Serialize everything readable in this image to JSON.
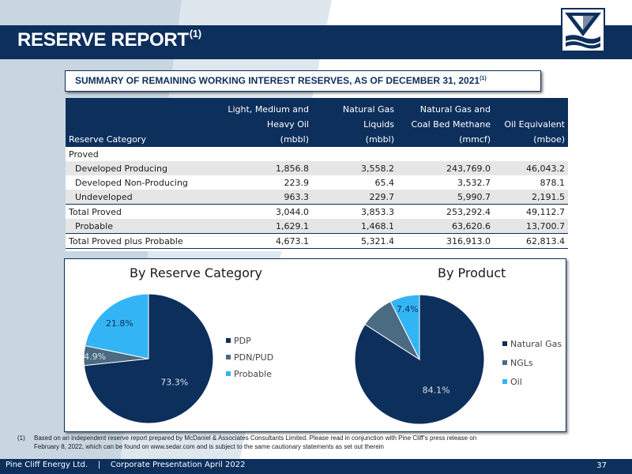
{
  "slide": {
    "title": "RESERVE REPORT",
    "title_sup": "(1)",
    "subtitle": "SUMMARY OF REMAINING WORKING INTEREST RESERVES, AS OF DECEMBER 31, 2021",
    "subtitle_sup": "(1)"
  },
  "table": {
    "headers": {
      "category": "Reserve Category",
      "col1_l1": "Light, Medium and",
      "col1_l2": "Heavy Oil",
      "col1_l3": "(mbbl)",
      "col2_l1": "Natural Gas",
      "col2_l2": "Liquids",
      "col2_l3": "(mbbl)",
      "col3_l1": "Natural Gas and",
      "col3_l2": "Coal Bed Methane",
      "col3_l3": "(mmcf)",
      "col4_l2": "Oil Equivalent",
      "col4_l3": "(mboe)"
    },
    "rows": [
      {
        "label": "Proved",
        "c1": "",
        "c2": "",
        "c3": "",
        "c4": ""
      },
      {
        "label": "Developed Producing",
        "c1": "1,856.8",
        "c2": "3,558.2",
        "c3": "243,769.0",
        "c4": "46,043.2"
      },
      {
        "label": "Developed Non-Producing",
        "c1": "223.9",
        "c2": "65.4",
        "c3": "3,532.7",
        "c4": "878.1"
      },
      {
        "label": "Undeveloped",
        "c1": "963.3",
        "c2": "229.7",
        "c3": "5,990.7",
        "c4": "2,191.5"
      },
      {
        "label": "Total Proved",
        "c1": "3,044.0",
        "c2": "3,853.3",
        "c3": "253,292.4",
        "c4": "49,112.7"
      },
      {
        "label": "Probable",
        "c1": "1,629.1",
        "c2": "1,468.1",
        "c3": "63,620.6",
        "c4": "13,700.7"
      },
      {
        "label": "Total Proved plus Probable",
        "c1": "4,673.1",
        "c2": "5,321.4",
        "c3": "316,913.0",
        "c4": "62,813.4"
      }
    ]
  },
  "chart_data": [
    {
      "type": "pie",
      "title": "By Reserve Category",
      "categories": [
        "PDP",
        "PDN/PUD",
        "Probable"
      ],
      "values": [
        73.3,
        4.9,
        21.8
      ],
      "labels": [
        "73.3%",
        "4.9%",
        "21.8%"
      ],
      "colors": [
        "#0d2f5c",
        "#4a6b82",
        "#33b5f5"
      ],
      "legend_position": "right"
    },
    {
      "type": "pie",
      "title": "By Product",
      "categories": [
        "Natural Gas",
        "NGLs",
        "Oil"
      ],
      "values": [
        84.1,
        8.5,
        7.4
      ],
      "labels": [
        "84.1%",
        "8.5%",
        "7.4%"
      ],
      "colors": [
        "#0d2f5c",
        "#4a6b82",
        "#33b5f5"
      ],
      "legend_position": "right"
    }
  ],
  "footnote": {
    "num": "(1)",
    "line1": "Based on an independent reserve report prepared by McDaniel & Associates Consultants Limited.  Please read in conjunction with Pine Cliff’s press release on",
    "line2": "February 8, 2022, which can be found on www.sedar.com and is subject to the same cautionary statements as set out therein"
  },
  "footer": {
    "text": "Pine Cliff Energy Ltd.    |    Corporate Presentation April 2022",
    "page": "37"
  },
  "colors": {
    "navy": "#0d2f5c",
    "slate": "#4a6b82",
    "sky": "#33b5f5",
    "light_blue_bg": "#d9e6f2"
  }
}
